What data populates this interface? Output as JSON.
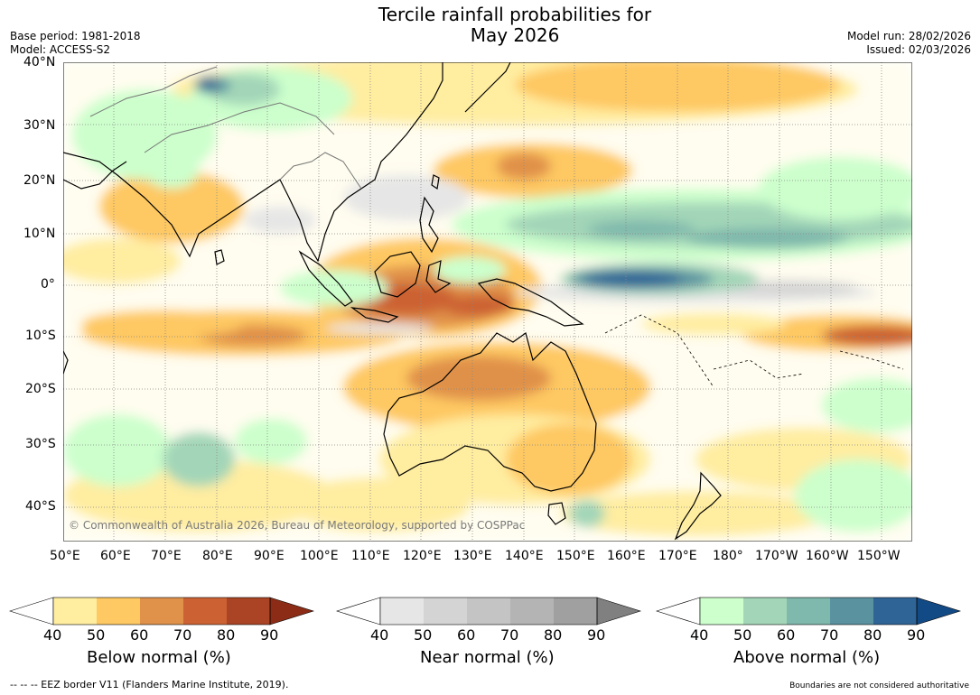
{
  "title": {
    "line1": "Tercile rainfall probabilities for",
    "line2": "May 2026"
  },
  "meta": {
    "base_period": "Base period: 1981-2018",
    "model": "Model: ACCESS-S2",
    "model_run": "Model run: 28/02/2026",
    "issued": "Issued: 02/03/2026"
  },
  "map": {
    "lon_labels": [
      "50°E",
      "60°E",
      "70°E",
      "80°E",
      "90°E",
      "100°E",
      "110°E",
      "120°E",
      "130°E",
      "140°E",
      "150°E",
      "160°E",
      "170°E",
      "180°",
      "170°W",
      "160°W",
      "150°W"
    ],
    "lat_labels": [
      "40°N",
      "30°N",
      "20°N",
      "10°N",
      "0°",
      "10°S",
      "20°S",
      "30°S",
      "40°S"
    ],
    "copyright": "© Commonwealth of Australia 2026, Bureau of Meteorology, supported by COSPPac",
    "lon_range": [
      50,
      216
    ],
    "lat_range": [
      -46,
      40
    ]
  },
  "colorbars": [
    {
      "label": "Below normal (%)",
      "ticks": [
        "40",
        "50",
        "60",
        "70",
        "80",
        "90"
      ],
      "colors": [
        "#ffffff",
        "#ffeda0",
        "#fec862",
        "#e0914a",
        "#cc6233",
        "#aa4424",
        "#8c2c16"
      ]
    },
    {
      "label": "Near normal (%)",
      "ticks": [
        "40",
        "50",
        "60",
        "70",
        "80",
        "90"
      ],
      "colors": [
        "#ffffff",
        "#e6e6e6",
        "#d4d4d4",
        "#c4c4c4",
        "#b4b4b4",
        "#a0a0a0",
        "#808080"
      ]
    },
    {
      "label": "Above normal (%)",
      "ticks": [
        "40",
        "50",
        "60",
        "70",
        "80",
        "90"
      ],
      "colors": [
        "#ffffff",
        "#ccffcc",
        "#a3d6b8",
        "#7fb8ac",
        "#5a92a0",
        "#2e6496",
        "#124a86"
      ]
    }
  ],
  "footer": {
    "eez_legend": "--  --  -- EEZ border V11 (Flanders Marine Institute, 2019).",
    "disclaimer": "Boundaries are not considered authoritative"
  }
}
